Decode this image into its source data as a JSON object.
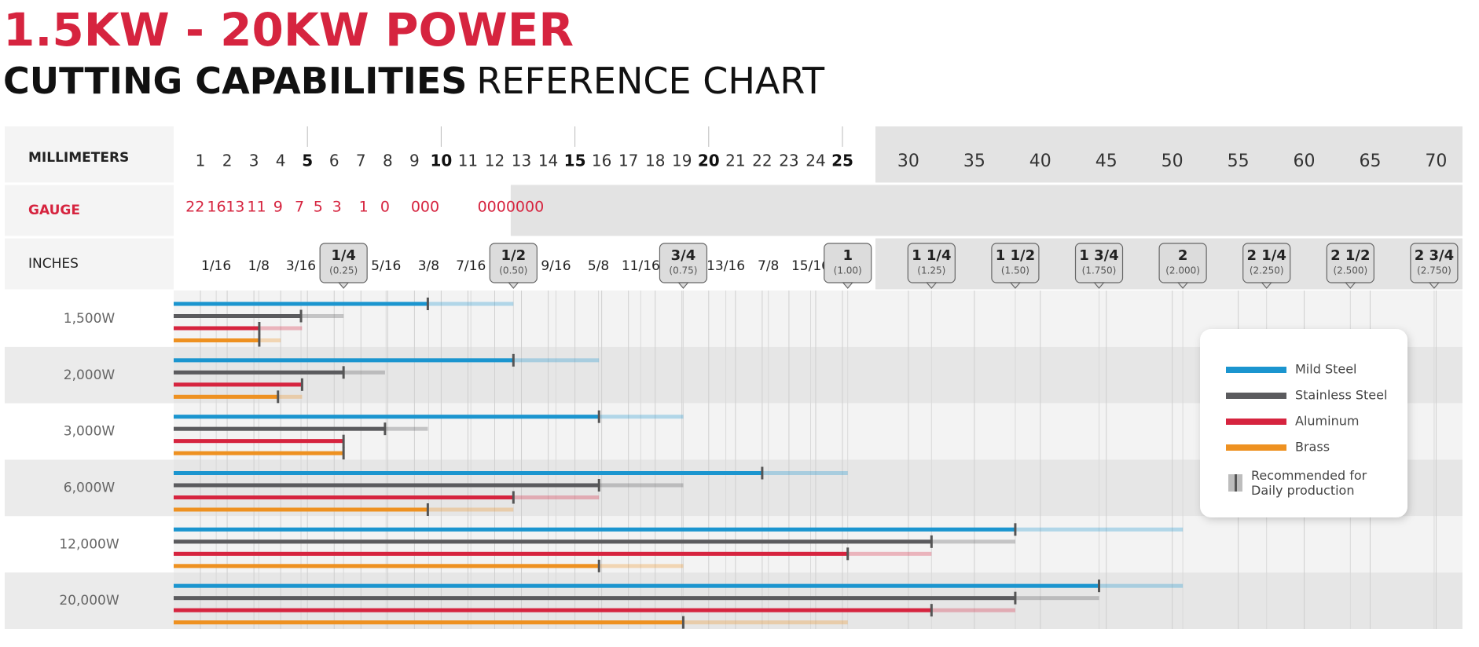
{
  "chart_data": {
    "type": "range-bar",
    "title": "1.5KW - 20KW POWER",
    "subtitle_bold": "CUTTING CAPABILITIES",
    "subtitle": "REFERENCE CHART",
    "x_label": "MILLIMETERS",
    "gauge_label": "GAUGE",
    "inch_label": "INCHES",
    "xlim": [
      0,
      72
    ],
    "xticks": [
      1,
      2,
      3,
      4,
      5,
      6,
      7,
      8,
      9,
      10,
      11,
      12,
      13,
      14,
      15,
      16,
      17,
      18,
      19,
      20,
      21,
      22,
      23,
      24,
      25,
      30,
      35,
      40,
      45,
      50,
      55,
      60,
      65,
      70
    ],
    "gauge_ticks": [
      {
        "value": 0.8,
        "label": "22"
      },
      {
        "value": 1.6,
        "label": "16"
      },
      {
        "value": 2.3,
        "label": "13"
      },
      {
        "value": 3.1,
        "label": "11"
      },
      {
        "value": 3.9,
        "label": "9"
      },
      {
        "value": 4.7,
        "label": "7"
      },
      {
        "value": 5.4,
        "label": "5"
      },
      {
        "value": 6.1,
        "label": "3"
      },
      {
        "value": 7.1,
        "label": "1"
      },
      {
        "value": 7.9,
        "label": "0"
      },
      {
        "value": 9.4,
        "label": "000"
      },
      {
        "value": 12.6,
        "label": "0000000"
      }
    ],
    "inch_ticks": [
      {
        "value": 1.59,
        "label": "1/16"
      },
      {
        "value": 3.18,
        "label": "1/8"
      },
      {
        "value": 4.76,
        "label": "3/16"
      },
      {
        "value": 6.35,
        "label": "1/4",
        "decimal": "(0.25)"
      },
      {
        "value": 7.94,
        "label": "5/16"
      },
      {
        "value": 9.53,
        "label": "3/8"
      },
      {
        "value": 11.11,
        "label": "7/16"
      },
      {
        "value": 12.7,
        "label": "1/2",
        "decimal": "(0.50)"
      },
      {
        "value": 14.29,
        "label": "9/16"
      },
      {
        "value": 15.88,
        "label": "5/8"
      },
      {
        "value": 17.46,
        "label": "11/16"
      },
      {
        "value": 19.05,
        "label": "3/4",
        "decimal": "(0.75)"
      },
      {
        "value": 20.64,
        "label": "13/16"
      },
      {
        "value": 22.23,
        "label": "7/8"
      },
      {
        "value": 23.81,
        "label": "15/16"
      },
      {
        "value": 25.4,
        "label": "1",
        "decimal": "(1.00)"
      },
      {
        "value": 31.75,
        "label": "1 1/4",
        "decimal": "(1.25)"
      },
      {
        "value": 38.1,
        "label": "1 1/2",
        "decimal": "(1.50)"
      },
      {
        "value": 44.45,
        "label": "1 3/4",
        "decimal": "(1.750)"
      },
      {
        "value": 50.8,
        "label": "2",
        "decimal": "(2.000)"
      },
      {
        "value": 57.15,
        "label": "2 1/4",
        "decimal": "(2.250)"
      },
      {
        "value": 63.5,
        "label": "2 1/2",
        "decimal": "(2.500)"
      },
      {
        "value": 69.85,
        "label": "2 3/4",
        "decimal": "(2.750)"
      }
    ],
    "categories": [
      "1,500W",
      "2,000W",
      "3,000W",
      "6,000W",
      "12,000W",
      "20,000W"
    ],
    "series": [
      {
        "name": "Mild Steel",
        "color": "#1b95cf",
        "values": [
          12.7,
          15.9,
          19.05,
          25.4,
          50.8,
          50.8
        ],
        "recommended": [
          9.5,
          12.7,
          15.9,
          22,
          38.1,
          44.45
        ]
      },
      {
        "name": "Stainless Steel",
        "color": "#5b5b5e",
        "values": [
          6.35,
          7.9,
          9.5,
          19.05,
          38.1,
          44.45
        ],
        "recommended": [
          4.76,
          6.35,
          7.9,
          15.9,
          31.75,
          38.1
        ]
      },
      {
        "name": "Aluminum",
        "color": "#d6243f",
        "values": [
          4.8,
          4.8,
          6.35,
          15.9,
          31.75,
          38.1
        ],
        "recommended": [
          3.2,
          4.8,
          6.35,
          12.7,
          25.4,
          31.75
        ]
      },
      {
        "name": "Brass",
        "color": "#ee9121",
        "values": [
          4,
          4.8,
          6.35,
          12.7,
          19.05,
          25.4
        ],
        "recommended": [
          3.2,
          3.9,
          6.35,
          9.5,
          15.9,
          19.05
        ]
      }
    ],
    "recommended_label": "Recommended for Daily production"
  }
}
